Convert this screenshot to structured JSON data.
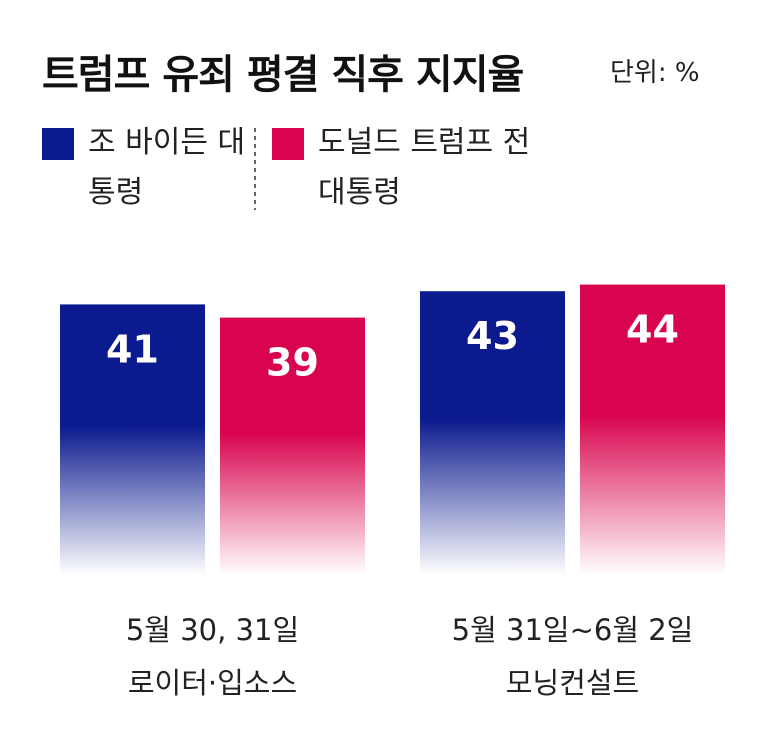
{
  "chart_data": {
    "type": "bar",
    "title": "트럼프 유죄 평결 직후 지지율",
    "unit": "단위: %",
    "categories": [
      "5월 30, 31일",
      "5월 31일~6월 2일"
    ],
    "category_sublabels": [
      "로이터·입소스",
      "모닝컨설트"
    ],
    "series": [
      {
        "name": "조 바이든 대통령",
        "color": "#0b1a8e",
        "values": [
          41,
          43
        ]
      },
      {
        "name": "도널드 트럼프 전 대통령",
        "color": "#d9044f",
        "values": [
          39,
          44
        ]
      }
    ]
  }
}
